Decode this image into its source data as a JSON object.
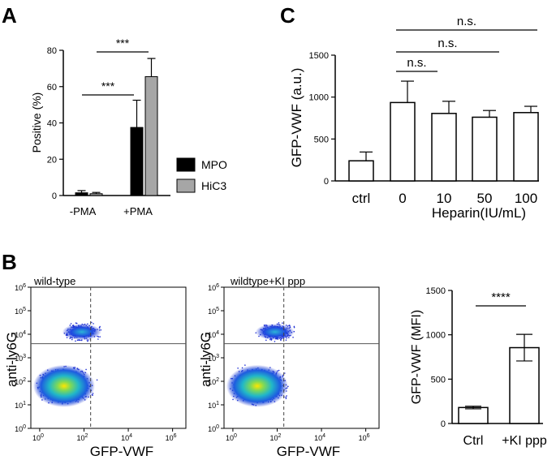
{
  "panel_labels": {
    "a": "A",
    "b": "B",
    "c": "C"
  },
  "colors": {
    "mpo": "#000000",
    "hic3": "#a6a6a6"
  },
  "chart_data": [
    {
      "panel": "A",
      "type": "bar",
      "title": "",
      "xlabel": "",
      "ylabel": "Positive (%)",
      "ylim": [
        0,
        80
      ],
      "yticks": [
        "0",
        "20",
        "40",
        "60",
        "80"
      ],
      "categories": [
        "-PMA",
        "+PMA"
      ],
      "series": [
        {
          "name": "MPO",
          "values": [
            1.5,
            37.5
          ],
          "errors": [
            1.2,
            15
          ]
        },
        {
          "name": "HiC3",
          "values": [
            1.0,
            65.5
          ],
          "errors": [
            0.7,
            10
          ]
        }
      ],
      "legend": [
        "MPO",
        "HiC3"
      ],
      "annotations": [
        {
          "text": "***",
          "between": "-PMA MPO vs +PMA MPO"
        },
        {
          "text": "***",
          "between": "-PMA HiC3 vs +PMA HiC3"
        }
      ]
    },
    {
      "panel": "C",
      "type": "bar",
      "title": "",
      "xlabel": "Heparin(IU/mL)",
      "ylabel": "GFP-VWF (a.u.)",
      "ylim": [
        0,
        1500
      ],
      "yticks": [
        "0",
        "500",
        "1000",
        "1500"
      ],
      "categories": [
        "ctrl",
        "0",
        "10",
        "50",
        "100"
      ],
      "values": [
        240,
        935,
        805,
        760,
        815
      ],
      "errors": [
        105,
        255,
        145,
        80,
        75
      ],
      "annotations": [
        {
          "text": "n.s.",
          "between": "0 vs 10"
        },
        {
          "text": "n.s.",
          "between": "0 vs 50"
        },
        {
          "text": "n.s.",
          "between": "0 vs 100"
        }
      ]
    },
    {
      "panel": "B",
      "type": "scatter",
      "title": "wild-type",
      "xlabel": "GFP-VWF",
      "ylabel": "anti-ly6G",
      "x_tick_exponents": [
        "0",
        "2",
        "4",
        "6"
      ],
      "y_tick_exponents": [
        "0",
        "1",
        "2",
        "3",
        "4",
        "5",
        "6"
      ],
      "tick_base": "10",
      "gate": {
        "x_threshold_log": 2.3,
        "y_threshold_log": 3.6
      }
    },
    {
      "panel": "B",
      "type": "scatter",
      "title": "wildtype+KI ppp",
      "xlabel": "GFP-VWF",
      "ylabel": "anti-ly6G",
      "x_tick_exponents": [
        "0",
        "2",
        "4",
        "6"
      ],
      "y_tick_exponents": [
        "0",
        "1",
        "2",
        "3",
        "4",
        "5",
        "6"
      ],
      "tick_base": "10",
      "gate": {
        "x_threshold_log": 2.3,
        "y_threshold_log": 3.6
      }
    },
    {
      "panel": "B",
      "type": "bar",
      "title": "",
      "xlabel": "",
      "ylabel": "GFP-VWF (MFI)",
      "ylim": [
        0,
        1500
      ],
      "yticks": [
        "0",
        "500",
        "1000",
        "1500"
      ],
      "categories": [
        "Ctrl",
        "+KI ppp"
      ],
      "values": [
        180,
        855
      ],
      "errors": [
        15,
        150
      ],
      "annotations": [
        {
          "text": "****",
          "between": "Ctrl vs +KI ppp"
        }
      ]
    }
  ]
}
